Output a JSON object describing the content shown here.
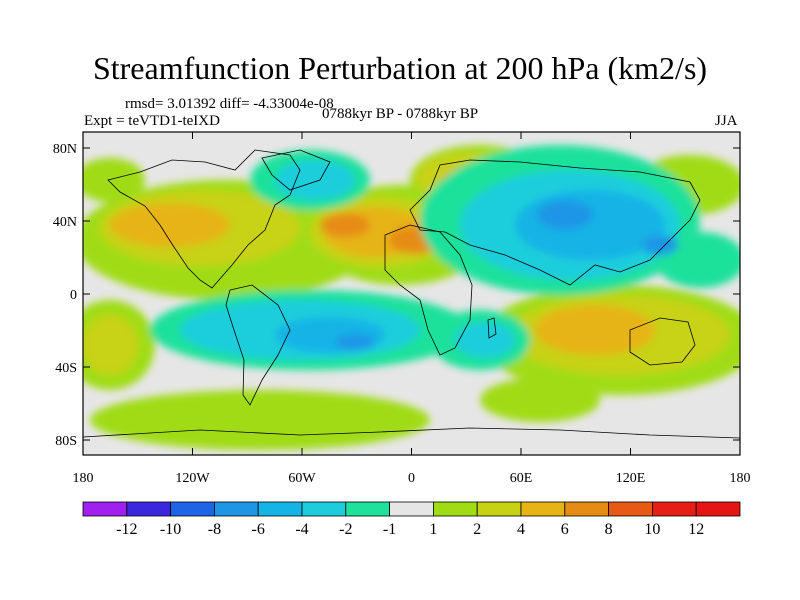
{
  "figure": {
    "title": "Streamfunction Perturbation at 200 hPa (km2/s)",
    "stats": "rmsd= 3.01392 diff= -4.33004e-08",
    "experiment": "Expt = teVTD1-teIXD",
    "period": "0788kyr BP - 0788kyr BP",
    "season": "JJA"
  },
  "axes": {
    "lat_labels": [
      "80N",
      "40N",
      "0",
      "40S",
      "80S"
    ],
    "lon_labels": [
      "180",
      "120W",
      "60W",
      "0",
      "60E",
      "120E",
      "180"
    ]
  },
  "colorbar": {
    "labels": [
      "-12",
      "-10",
      "-8",
      "-6",
      "-4",
      "-2",
      "-1",
      "1",
      "2",
      "4",
      "6",
      "8",
      "10",
      "12"
    ],
    "colors": [
      "#a020f0",
      "#3c28dc",
      "#1e64e6",
      "#1e96e6",
      "#14b4e6",
      "#1ecddc",
      "#1ee19b",
      "#e6e6e6",
      "#a0dc14",
      "#c8d214",
      "#e6b414",
      "#e68c14",
      "#e65a14",
      "#e61e14",
      "#e61414"
    ]
  },
  "colors": {
    "neutral": "#e6e6e6",
    "pos_weak": "#a0dc14",
    "pos_mid": "#c8d214",
    "pos_strong": "#e6b414",
    "pos_vstrong": "#e68c14",
    "neg_weak": "#1ee19b",
    "neg_mid": "#1ecddc",
    "neg_strong": "#14b4e6",
    "neg_vstrong": "#1e96e6"
  }
}
